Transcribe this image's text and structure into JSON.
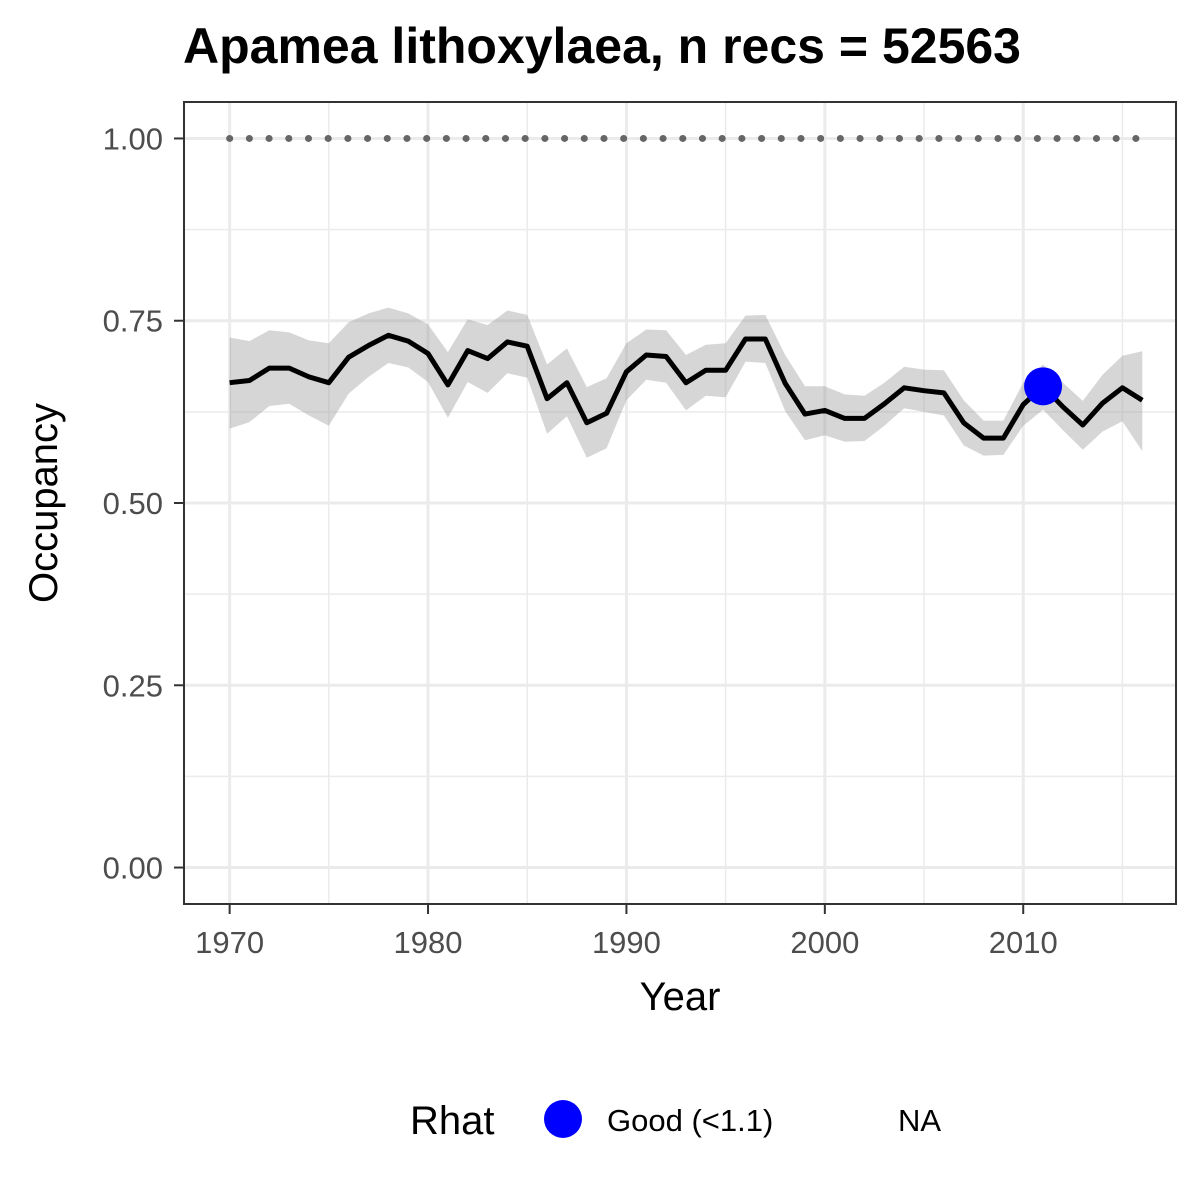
{
  "chart_data": {
    "type": "line",
    "title": "Apamea lithoxylaea, n recs = 52563",
    "xlabel": "Year",
    "ylabel": "Occupancy",
    "xlim": [
      1967.7,
      2017.7
    ],
    "ylim": [
      -0.05,
      1.05
    ],
    "x_ticks": [
      1970,
      1980,
      1990,
      2000,
      2010
    ],
    "x_tick_labels": [
      "1970",
      "1980",
      "1990",
      "2000",
      "2010"
    ],
    "y_ticks": [
      0,
      0.25,
      0.5,
      0.75,
      1.0
    ],
    "y_tick_labels": [
      "0.00",
      "0.25",
      "0.50",
      "0.75",
      "1.00"
    ],
    "grid": true,
    "x": [
      1970,
      1971,
      1972,
      1973,
      1974,
      1975,
      1976,
      1977,
      1978,
      1979,
      1980,
      1981,
      1982,
      1983,
      1984,
      1985,
      1986,
      1987,
      1988,
      1989,
      1990,
      1991,
      1992,
      1993,
      1994,
      1995,
      1996,
      1997,
      1998,
      1999,
      2000,
      2001,
      2002,
      2003,
      2004,
      2005,
      2006,
      2007,
      2008,
      2009,
      2010,
      2011,
      2012,
      2013,
      2014,
      2015,
      2016
    ],
    "series": [
      {
        "values": [
          0.665,
          0.668,
          0.685,
          0.685,
          0.673,
          0.665,
          0.7,
          0.716,
          0.73,
          0.722,
          0.705,
          0.662,
          0.709,
          0.698,
          0.721,
          0.715,
          0.643,
          0.665,
          0.61,
          0.623,
          0.68,
          0.703,
          0.701,
          0.665,
          0.682,
          0.682,
          0.725,
          0.725,
          0.664,
          0.622,
          0.627,
          0.616,
          0.616,
          0.636,
          0.658,
          0.654,
          0.651,
          0.61,
          0.589,
          0.589,
          0.635,
          0.66,
          0.632,
          0.607,
          0.637,
          0.658,
          0.641
        ],
        "lower": [
          0.602,
          0.611,
          0.633,
          0.636,
          0.62,
          0.606,
          0.65,
          0.673,
          0.692,
          0.686,
          0.666,
          0.617,
          0.666,
          0.651,
          0.678,
          0.672,
          0.595,
          0.619,
          0.562,
          0.575,
          0.641,
          0.669,
          0.665,
          0.627,
          0.647,
          0.645,
          0.694,
          0.692,
          0.626,
          0.586,
          0.593,
          0.584,
          0.585,
          0.606,
          0.63,
          0.625,
          0.62,
          0.579,
          0.565,
          0.566,
          0.606,
          0.628,
          0.6,
          0.573,
          0.598,
          0.612,
          0.571
        ],
        "upper": [
          0.727,
          0.722,
          0.737,
          0.734,
          0.723,
          0.719,
          0.748,
          0.76,
          0.768,
          0.76,
          0.745,
          0.707,
          0.752,
          0.744,
          0.764,
          0.758,
          0.69,
          0.712,
          0.659,
          0.671,
          0.719,
          0.738,
          0.737,
          0.703,
          0.717,
          0.719,
          0.757,
          0.758,
          0.703,
          0.66,
          0.66,
          0.649,
          0.647,
          0.665,
          0.687,
          0.683,
          0.682,
          0.641,
          0.613,
          0.613,
          0.665,
          0.69,
          0.665,
          0.64,
          0.676,
          0.702,
          0.708
        ]
      }
    ],
    "reference_line": {
      "y": 1.0,
      "style": "dotted"
    },
    "highlighted_points": [
      {
        "x": 2011,
        "y": 0.66,
        "category": "Good (<1.1)"
      }
    ],
    "legend": {
      "position": "bottom",
      "title": "Rhat",
      "entries": [
        {
          "label": "Good (<1.1)",
          "color": "#0000ff",
          "marker": "circle"
        },
        {
          "label": "NA",
          "color": null,
          "marker": "none"
        }
      ]
    },
    "colors": {
      "line": "#000000",
      "ribbon": "#999999",
      "reference": "#666666",
      "point": "#0000ff",
      "grid": "#ebebeb",
      "panel_border": "#333333"
    }
  }
}
